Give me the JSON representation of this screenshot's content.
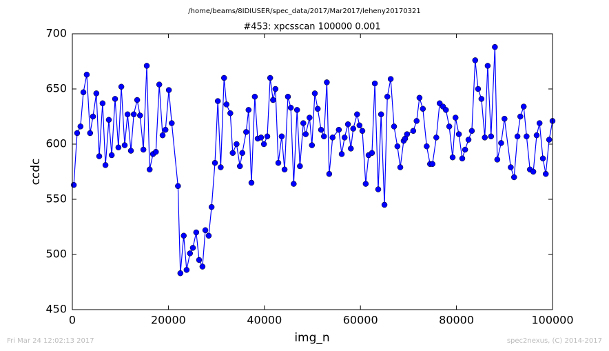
{
  "chart_data": {
    "type": "line",
    "suptitle": "/home/beams/8IDIUSER/spec_data/2017/Mar2017/leheny20170321",
    "title": "#453: xpcsscan 100000 0.001",
    "x_label": "img_n",
    "y_label": "ccdc",
    "footer_left": "Fri Mar 24 12:02:13 2017",
    "footer_right": "spec2nexus, (C) 2014-2017",
    "x": [
      300,
      1000,
      1700,
      2300,
      3000,
      3700,
      4300,
      5000,
      5600,
      6300,
      6900,
      7600,
      8200,
      8900,
      9600,
      10200,
      10900,
      11500,
      12200,
      12800,
      13500,
      14100,
      14800,
      15500,
      16100,
      16800,
      17400,
      18100,
      18800,
      19400,
      20100,
      20700,
      22000,
      22500,
      23200,
      23800,
      24500,
      25100,
      25800,
      26400,
      27100,
      27700,
      28400,
      29000,
      29700,
      30300,
      30900,
      31600,
      32100,
      32900,
      33400,
      34200,
      34900,
      35400,
      36200,
      36700,
      37300,
      38000,
      38600,
      39300,
      39900,
      40600,
      41200,
      41800,
      42300,
      42900,
      43600,
      44200,
      44900,
      45500,
      46100,
      46800,
      47400,
      48100,
      48600,
      49400,
      49900,
      50500,
      51100,
      51800,
      52400,
      53000,
      53500,
      54200,
      55500,
      56100,
      56700,
      57400,
      58000,
      58500,
      59300,
      59800,
      60400,
      61100,
      61700,
      62400,
      63000,
      63700,
      64300,
      65000,
      65600,
      66300,
      67000,
      67700,
      68300,
      69000,
      69300,
      69700,
      71000,
      71700,
      72300,
      73000,
      73800,
      74500,
      75000,
      75800,
      76500,
      77200,
      77800,
      78500,
      79200,
      79800,
      80500,
      81200,
      81800,
      82500,
      83200,
      83900,
      84500,
      85200,
      85900,
      86500,
      87200,
      88000,
      88500,
      89300,
      90000,
      91300,
      92000,
      92700,
      93300,
      94000,
      94600,
      95300,
      96000,
      96700,
      97300,
      98000,
      98600,
      99300,
      100000
    ],
    "series": [
      {
        "name": "ccdc",
        "color": "#0000ff",
        "values": [
          563,
          610,
          616,
          647,
          663,
          610,
          625,
          646,
          589,
          637,
          581,
          622,
          590,
          641,
          597,
          652,
          599,
          627,
          594,
          627,
          640,
          626,
          595,
          671,
          577,
          591,
          593,
          654,
          608,
          613,
          649,
          619,
          562,
          483,
          517,
          486,
          501,
          506,
          520,
          495,
          489,
          522,
          517,
          543,
          583,
          639,
          579,
          660,
          636,
          628,
          592,
          600,
          580,
          592,
          611,
          631,
          565,
          643,
          605,
          606,
          600,
          607,
          660,
          640,
          650,
          583,
          607,
          577,
          643,
          633,
          564,
          631,
          580,
          619,
          609,
          624,
          599,
          646,
          632,
          613,
          607,
          656,
          573,
          606,
          613,
          591,
          606,
          618,
          596,
          614,
          627,
          617,
          612,
          564,
          590,
          592,
          655,
          559,
          627,
          545,
          643,
          659,
          616,
          598,
          579,
          603,
          605,
          609,
          612,
          621,
          642,
          632,
          598,
          582,
          582,
          606,
          637,
          634,
          631,
          616,
          588,
          624,
          609,
          587,
          595,
          604,
          612,
          676,
          650,
          641,
          606,
          671,
          607,
          688,
          586,
          601,
          623,
          579,
          570,
          607,
          625,
          634,
          607,
          577,
          575,
          608,
          619,
          587,
          573,
          604,
          621
        ]
      }
    ],
    "xlim": [
      0,
      100000
    ],
    "ylim": [
      450,
      700
    ],
    "xticks": [
      0,
      20000,
      40000,
      60000,
      80000,
      100000
    ],
    "yticks": [
      450,
      500,
      550,
      600,
      650,
      700
    ]
  }
}
